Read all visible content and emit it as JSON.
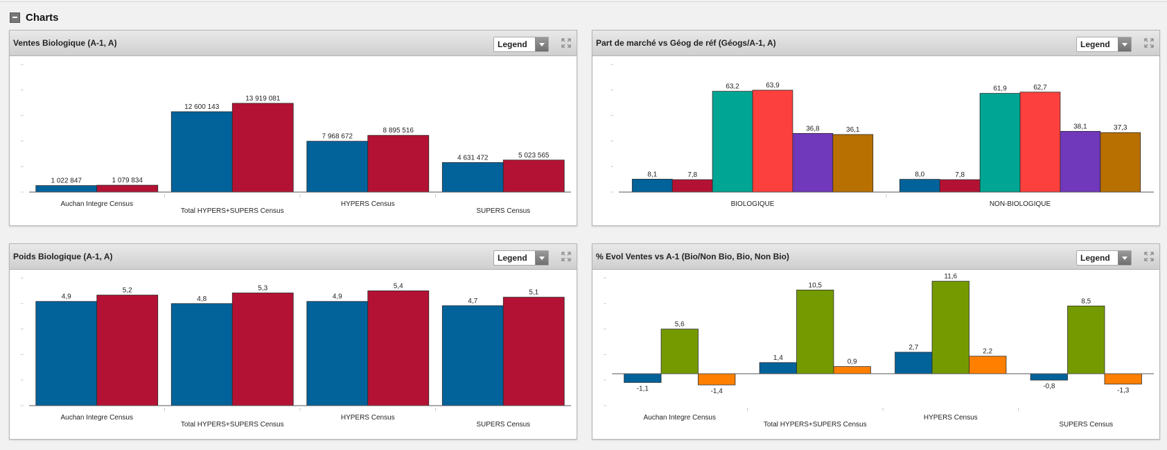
{
  "section": {
    "title": "Charts"
  },
  "legend_label": "Legend",
  "chart_data": [
    {
      "type": "bar",
      "title": "Ventes Biologique (A-1, A)",
      "categories": [
        "Auchan Integre Census",
        "Total HYPERS+SUPERS Census",
        "HYPERS Census",
        "SUPERS Census"
      ],
      "series": [
        {
          "values": [
            1022847,
            12600143,
            7968672,
            4631472
          ],
          "color": "#02629a"
        },
        {
          "values": [
            1079834,
            13919081,
            8895516,
            5023565
          ],
          "color": "#b41234"
        }
      ],
      "labels": [
        [
          "1 022 847",
          "12 600 143",
          "7 968 672",
          "4 631 472"
        ],
        [
          "1 079 834",
          "13 919 081",
          "8 895 516",
          "5 023 565"
        ]
      ],
      "ylim": [
        0,
        20000000
      ]
    },
    {
      "type": "bar",
      "title": "Part de marché vs Géog de réf (Géogs/A-1, A)",
      "categories": [
        "BIOLOGIQUE",
        "NON-BIOLOGIQUE"
      ],
      "series": [
        {
          "values": [
            8.1,
            8.0
          ],
          "color": "#02629a"
        },
        {
          "values": [
            7.8,
            7.8
          ],
          "color": "#b41234"
        },
        {
          "values": [
            63.2,
            61.9
          ],
          "color": "#00a593"
        },
        {
          "values": [
            63.9,
            62.7
          ],
          "color": "#fb403d"
        },
        {
          "values": [
            36.8,
            38.1
          ],
          "color": "#7038ba"
        },
        {
          "values": [
            36.1,
            37.3
          ],
          "color": "#b87000"
        }
      ],
      "labels": [
        [
          "8,1",
          "8,0"
        ],
        [
          "7,8",
          "7,8"
        ],
        [
          "63,2",
          "61,9"
        ],
        [
          "63,9",
          "62,7"
        ],
        [
          "36,8",
          "38,1"
        ],
        [
          "36,1",
          "37,3"
        ]
      ],
      "ylim": [
        0,
        80
      ]
    },
    {
      "type": "bar",
      "title": "Poids Biologique (A-1, A)",
      "categories": [
        "Auchan Integre Census",
        "Total HYPERS+SUPERS Census",
        "HYPERS Census",
        "SUPERS Census"
      ],
      "series": [
        {
          "values": [
            4.9,
            4.8,
            4.9,
            4.7
          ],
          "color": "#02629a"
        },
        {
          "values": [
            5.2,
            5.3,
            5.4,
            5.1
          ],
          "color": "#b41234"
        }
      ],
      "labels": [
        [
          "4,9",
          "4,8",
          "4,9",
          "4,7"
        ],
        [
          "5,2",
          "5,3",
          "5,4",
          "5,1"
        ]
      ],
      "ylim": [
        0,
        6
      ]
    },
    {
      "type": "bar",
      "title": "% Evol Ventes vs A-1 (Bio/Non Bio, Bio, Non Bio)",
      "categories": [
        "Auchan Integre Census",
        "Total HYPERS+SUPERS Census",
        "HYPERS Census",
        "SUPERS Census"
      ],
      "series": [
        {
          "values": [
            -1.1,
            1.4,
            2.7,
            -0.8
          ],
          "color": "#02629a"
        },
        {
          "values": [
            5.6,
            10.5,
            11.6,
            8.5
          ],
          "color": "#749a00"
        },
        {
          "values": [
            -1.4,
            0.9,
            2.2,
            -1.3
          ],
          "color": "#ff7f00"
        }
      ],
      "labels": [
        [
          "-1,1",
          "1,4",
          "2,7",
          "-0,8"
        ],
        [
          "5,6",
          "10,5",
          "11,6",
          "8,5"
        ],
        [
          "-1,4",
          "0,9",
          "2,2",
          "-1,3"
        ]
      ],
      "ylim": [
        -4,
        12
      ]
    }
  ]
}
